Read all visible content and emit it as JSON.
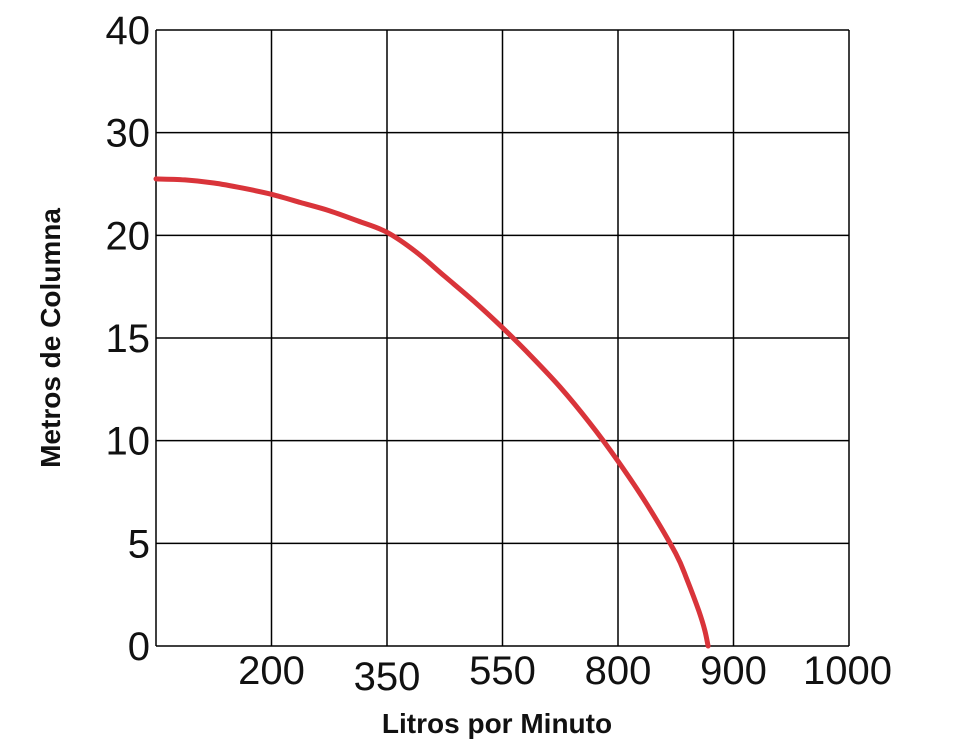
{
  "chart_data": {
    "type": "line",
    "title": "",
    "xlabel": "Litros por Minuto",
    "ylabel": "Metros de Columna",
    "x_tick_labels": [
      "200",
      "350",
      "550",
      "800",
      "900",
      "1000"
    ],
    "y_tick_labels": [
      "0",
      "5",
      "10",
      "15",
      "20",
      "30",
      "40"
    ],
    "grid": true,
    "legend": "none",
    "series": [
      {
        "color": "#d9343a",
        "points": [
          {
            "x_cat": 0.0,
            "y": 25.5
          },
          {
            "x_cat": 0.25,
            "y": 25.4
          },
          {
            "x_cat": 0.5,
            "y": 25.1
          },
          {
            "x_cat": 0.75,
            "y": 24.6
          },
          {
            "x_cat": 1.0,
            "y": 24.0
          },
          {
            "x_cat": 1.25,
            "y": 23.2
          },
          {
            "x_cat": 1.5,
            "y": 22.4
          },
          {
            "x_cat": 1.75,
            "y": 21.4
          },
          {
            "x_cat": 2.0,
            "y": 20.3
          },
          {
            "x_cat": 2.25,
            "y": 19.2
          },
          {
            "x_cat": 2.5,
            "y": 18.0
          },
          {
            "x_cat": 2.75,
            "y": 16.8
          },
          {
            "x_cat": 3.0,
            "y": 15.5
          },
          {
            "x_cat": 3.25,
            "y": 14.1
          },
          {
            "x_cat": 3.5,
            "y": 12.6
          },
          {
            "x_cat": 3.75,
            "y": 10.9
          },
          {
            "x_cat": 4.0,
            "y": 9.0
          },
          {
            "x_cat": 4.25,
            "y": 6.9
          },
          {
            "x_cat": 4.5,
            "y": 4.5
          },
          {
            "x_cat": 4.6,
            "y": 3.2
          },
          {
            "x_cat": 4.7,
            "y": 1.7
          },
          {
            "x_cat": 4.75,
            "y": 0.8
          },
          {
            "x_cat": 4.78,
            "y": 0.0
          }
        ]
      }
    ]
  }
}
